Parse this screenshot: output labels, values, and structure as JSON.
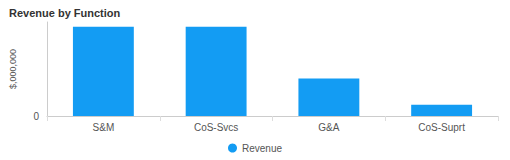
{
  "chart_data": {
    "type": "bar",
    "title": "Revenue by Function",
    "ylabel": "$,000,000",
    "categories": [
      "S&M",
      "CoS-Svcs",
      "G&A",
      "CoS-Suprt"
    ],
    "series": [
      {
        "name": "Revenue",
        "color": "#139cf3",
        "values": [
          3800000,
          3800000,
          1600000,
          480000
        ]
      }
    ],
    "ylim": [
      0,
      4000000
    ],
    "yticks": [
      0
    ],
    "grid": false,
    "legend": "bottom"
  }
}
